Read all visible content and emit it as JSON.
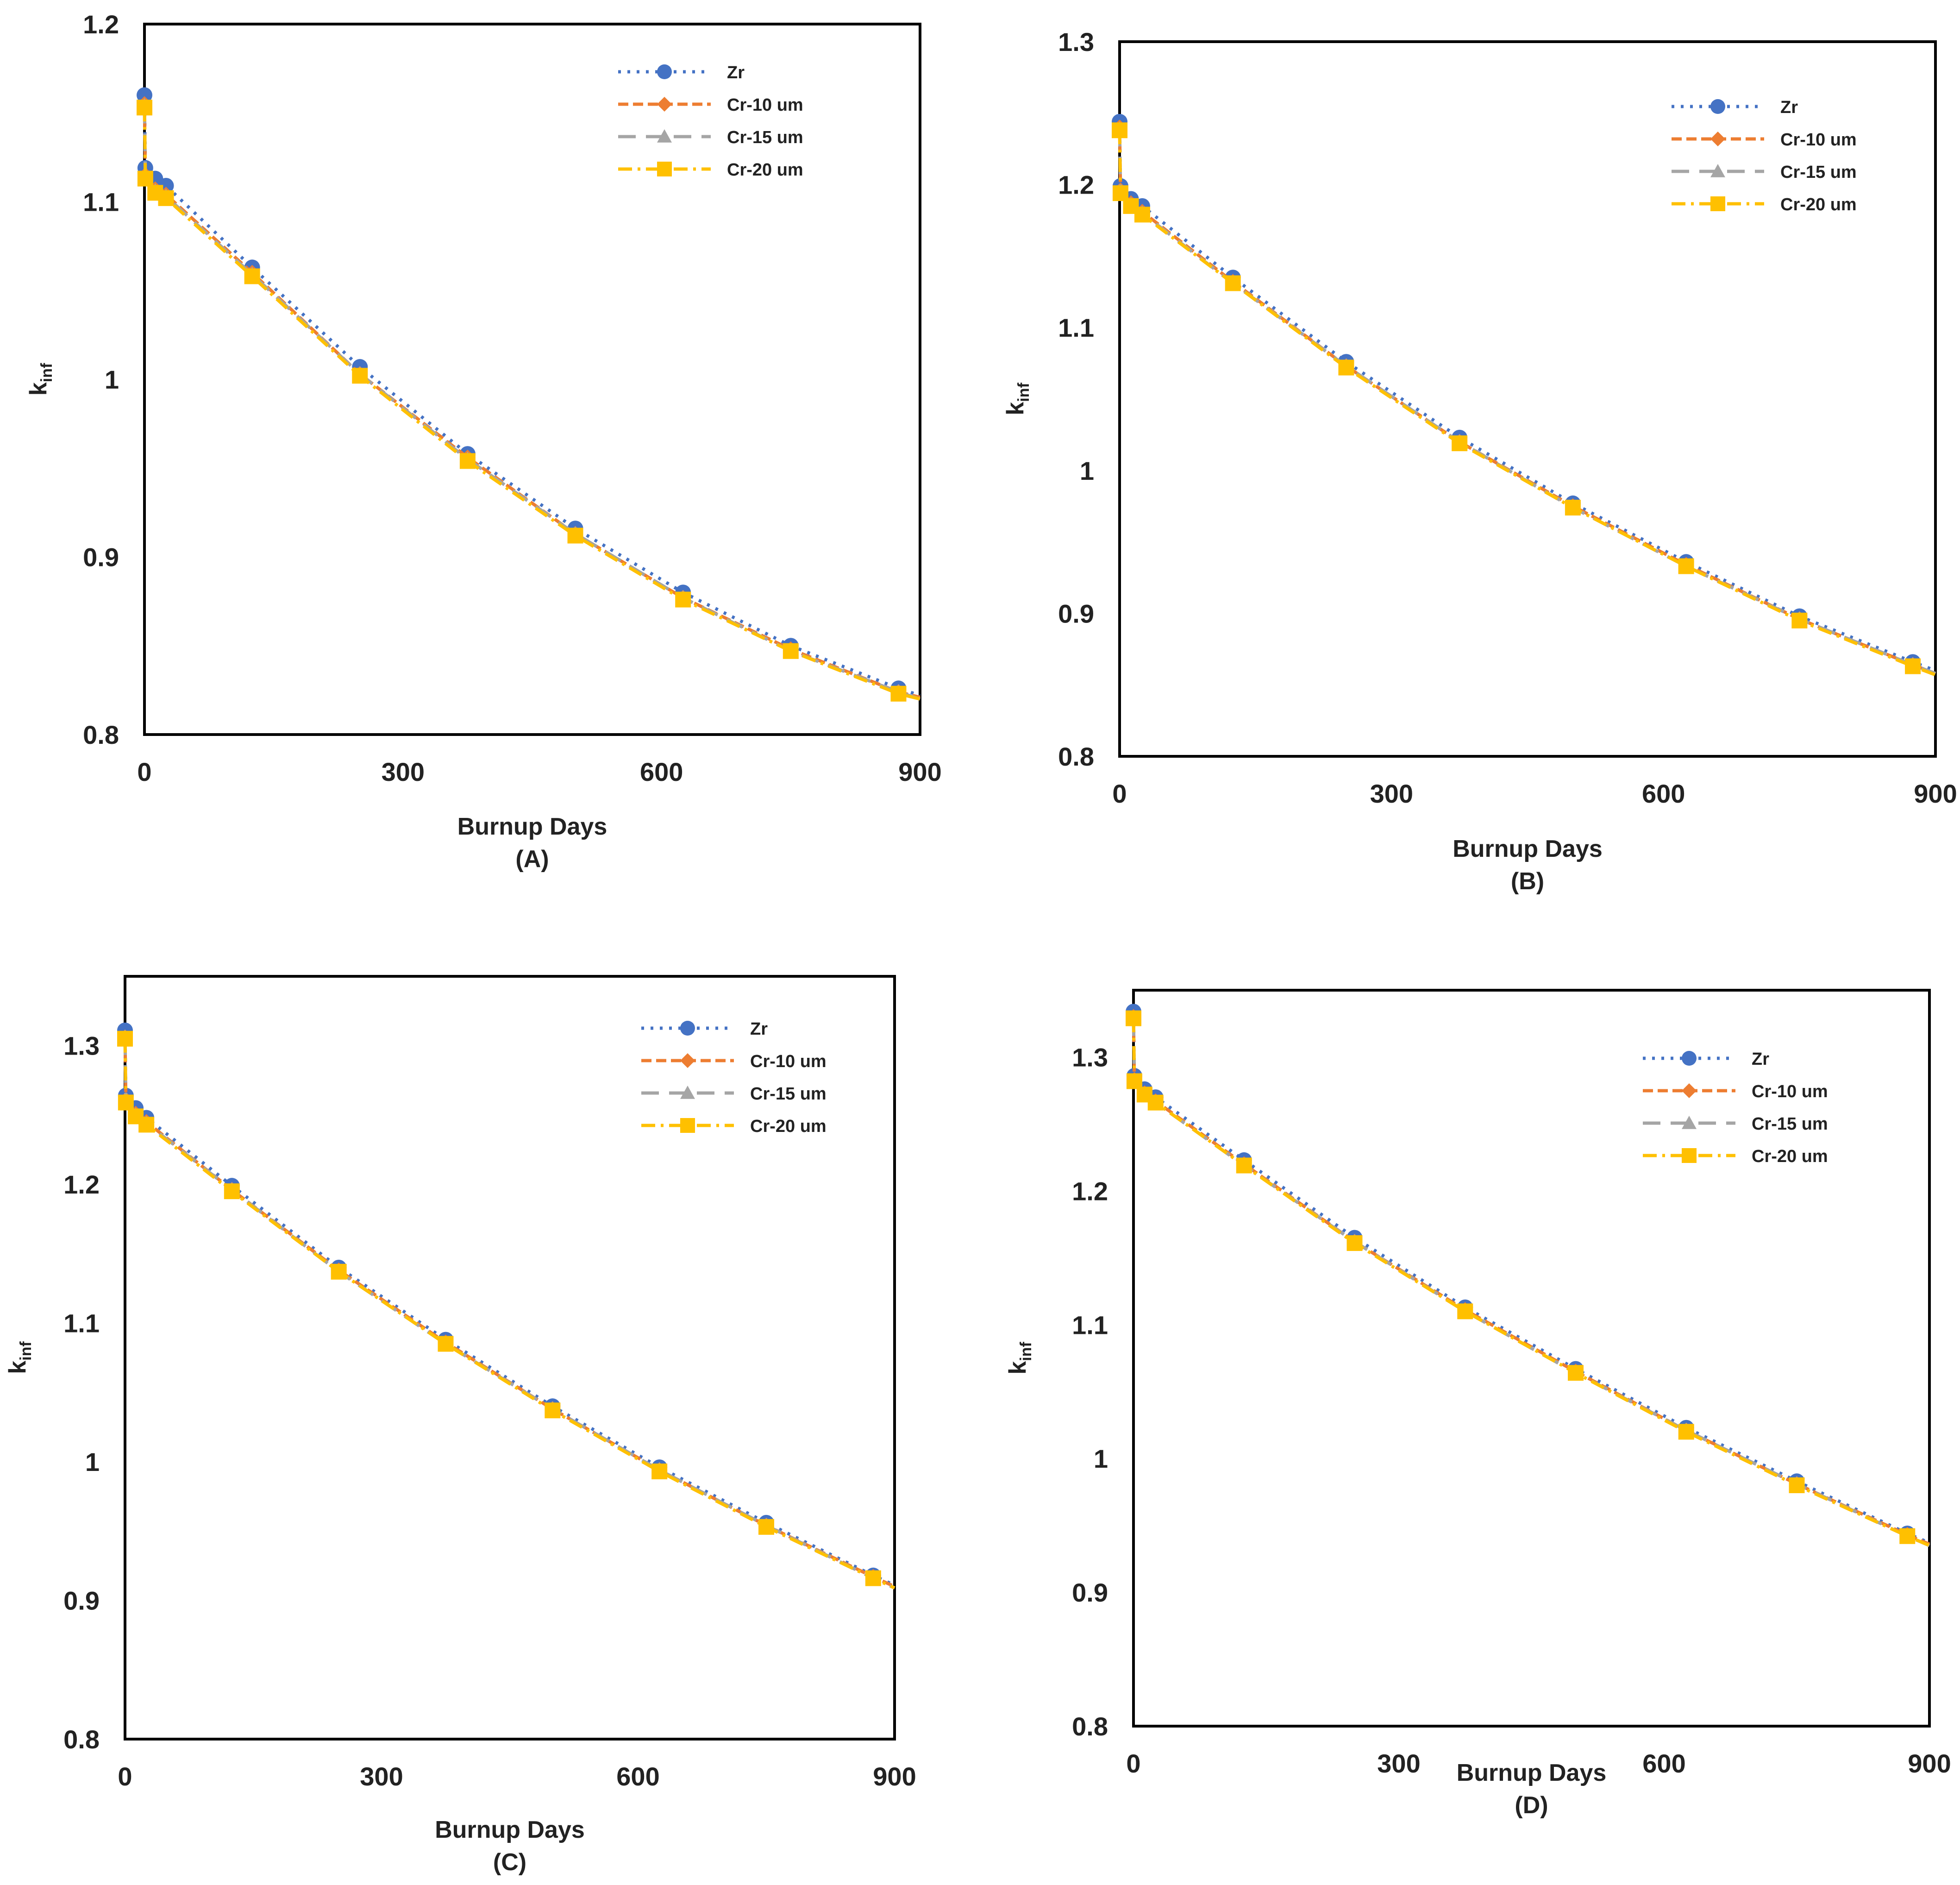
{
  "colors": {
    "zr": "#4472C4",
    "cr10": "#ED7D31",
    "cr15": "#A5A5A5",
    "cr20": "#FFC000",
    "axis": "#000000",
    "text": "#222222"
  },
  "legend_labels": [
    "Zr",
    "Cr-10 um",
    "Cr-15 um",
    "Cr-20 um"
  ],
  "chart_data": [
    {
      "type": "line",
      "panel_label": "(A)",
      "xlabel": "Burnup Days",
      "ylabel_main": "k",
      "ylabel_sub": "inf",
      "xlim": [
        0,
        900
      ],
      "ylim": [
        0.8,
        1.2
      ],
      "xticks": [
        0,
        300,
        600,
        900
      ],
      "xtick_labels": [
        "0",
        "300",
        "600",
        "900"
      ],
      "yticks": [
        0.8,
        0.9,
        1.0,
        1.1,
        1.2
      ],
      "ytick_labels": [
        "0.8",
        "0.9",
        "1",
        "1.1",
        "1.2"
      ],
      "legend_position": "top-right",
      "x": [
        0,
        1,
        12.5,
        25,
        125,
        250,
        375,
        500,
        625,
        750,
        875,
        900
      ],
      "series": [
        {
          "name": "Zr",
          "values": [
            1.16,
            1.119,
            1.113,
            1.109,
            1.063,
            1.007,
            0.958,
            0.916,
            0.88,
            0.85,
            0.826,
            0.822
          ]
        },
        {
          "name": "Cr-10 um",
          "values": [
            1.155,
            1.115,
            1.107,
            1.104,
            1.06,
            1.003,
            0.956,
            0.913,
            0.877,
            0.848,
            0.824,
            0.821
          ]
        },
        {
          "name": "Cr-15 um",
          "values": [
            1.154,
            1.114,
            1.106,
            1.103,
            1.059,
            1.003,
            0.955,
            0.913,
            0.877,
            0.847,
            0.824,
            0.82
          ]
        },
        {
          "name": "Cr-20 um",
          "values": [
            1.153,
            1.113,
            1.105,
            1.102,
            1.058,
            1.002,
            0.954,
            0.912,
            0.876,
            0.847,
            0.823,
            0.82
          ]
        }
      ]
    },
    {
      "type": "line",
      "panel_label": "(B)",
      "xlabel": "Burnup Days",
      "ylabel_main": "k",
      "ylabel_sub": "inf",
      "xlim": [
        0,
        900
      ],
      "ylim": [
        0.8,
        1.3
      ],
      "xticks": [
        0,
        300,
        600,
        900
      ],
      "xtick_labels": [
        "0",
        "300",
        "600",
        "900"
      ],
      "yticks": [
        0.8,
        0.9,
        1.0,
        1.1,
        1.2,
        1.3
      ],
      "ytick_labels": [
        "0.8",
        "0.9",
        "1",
        "1.1",
        "1.2",
        "1.3"
      ],
      "legend_position": "top-right",
      "x": [
        0,
        1,
        12.5,
        25,
        125,
        250,
        375,
        500,
        625,
        750,
        875,
        900
      ],
      "series": [
        {
          "name": "Zr",
          "values": [
            1.244,
            1.199,
            1.19,
            1.185,
            1.135,
            1.076,
            1.023,
            0.977,
            0.936,
            0.898,
            0.866,
            0.86
          ]
        },
        {
          "name": "Cr-10 um",
          "values": [
            1.24,
            1.196,
            1.187,
            1.181,
            1.132,
            1.073,
            1.02,
            0.975,
            0.934,
            0.896,
            0.864,
            0.858
          ]
        },
        {
          "name": "Cr-15 um",
          "values": [
            1.239,
            1.195,
            1.186,
            1.18,
            1.131,
            1.073,
            1.02,
            0.974,
            0.933,
            0.896,
            0.864,
            0.858
          ]
        },
        {
          "name": "Cr-20 um",
          "values": [
            1.238,
            1.194,
            1.185,
            1.179,
            1.131,
            1.072,
            1.019,
            0.974,
            0.933,
            0.895,
            0.863,
            0.857
          ]
        }
      ]
    },
    {
      "type": "line",
      "panel_label": "(C)",
      "xlabel": "Burnup Days",
      "ylabel_main": "k",
      "ylabel_sub": "inf",
      "xlim": [
        0,
        900
      ],
      "ylim": [
        0.8,
        1.35
      ],
      "xticks": [
        0,
        300,
        600,
        900
      ],
      "xtick_labels": [
        "0",
        "300",
        "600",
        "900"
      ],
      "yticks": [
        0.8,
        0.9,
        1.0,
        1.1,
        1.2,
        1.3
      ],
      "ytick_labels": [
        "0.8",
        "0.9",
        "1",
        "1.1",
        "1.2",
        "1.3"
      ],
      "legend_position": "top-right",
      "x": [
        0,
        1,
        12.5,
        25,
        125,
        250,
        375,
        500,
        625,
        750,
        875,
        900
      ],
      "series": [
        {
          "name": "Zr",
          "values": [
            1.311,
            1.264,
            1.255,
            1.248,
            1.199,
            1.14,
            1.088,
            1.04,
            0.996,
            0.956,
            0.918,
            0.911
          ]
        },
        {
          "name": "Cr-10 um",
          "values": [
            1.306,
            1.261,
            1.251,
            1.245,
            1.196,
            1.138,
            1.086,
            1.038,
            0.994,
            0.954,
            0.917,
            0.91
          ]
        },
        {
          "name": "Cr-15 um",
          "values": [
            1.306,
            1.26,
            1.25,
            1.244,
            1.196,
            1.137,
            1.085,
            1.038,
            0.994,
            0.954,
            0.916,
            0.909
          ]
        },
        {
          "name": "Cr-20 um",
          "values": [
            1.305,
            1.259,
            1.249,
            1.243,
            1.195,
            1.137,
            1.085,
            1.037,
            0.993,
            0.953,
            0.916,
            0.909
          ]
        }
      ]
    },
    {
      "type": "line",
      "panel_label": "(D)",
      "xlabel": "Burnup Days",
      "ylabel_main": "k",
      "ylabel_sub": "inf",
      "xlim": [
        0,
        900
      ],
      "ylim": [
        0.8,
        1.35
      ],
      "xticks": [
        0,
        300,
        600,
        900
      ],
      "xtick_labels": [
        "0",
        "300",
        "600",
        "900"
      ],
      "yticks": [
        0.8,
        0.9,
        1.0,
        1.1,
        1.2,
        1.3
      ],
      "ytick_labels": [
        "0.8",
        "0.9",
        "1",
        "1.1",
        "1.2",
        "1.3"
      ],
      "legend_position": "top-right",
      "x": [
        0,
        1,
        12.5,
        25,
        125,
        250,
        375,
        500,
        625,
        750,
        875,
        900
      ],
      "series": [
        {
          "name": "Zr",
          "values": [
            1.334,
            1.286,
            1.276,
            1.27,
            1.223,
            1.165,
            1.113,
            1.067,
            1.023,
            0.983,
            0.944,
            0.937
          ]
        },
        {
          "name": "Cr-10 um",
          "values": [
            1.33,
            1.283,
            1.273,
            1.267,
            1.22,
            1.162,
            1.111,
            1.065,
            1.021,
            0.981,
            0.943,
            0.936
          ]
        },
        {
          "name": "Cr-15 um",
          "values": [
            1.329,
            1.282,
            1.272,
            1.266,
            1.219,
            1.162,
            1.11,
            1.064,
            1.021,
            0.981,
            0.942,
            0.935
          ]
        },
        {
          "name": "Cr-20 um",
          "values": [
            1.329,
            1.282,
            1.272,
            1.266,
            1.219,
            1.161,
            1.11,
            1.064,
            1.02,
            0.98,
            0.942,
            0.935
          ]
        }
      ]
    }
  ]
}
